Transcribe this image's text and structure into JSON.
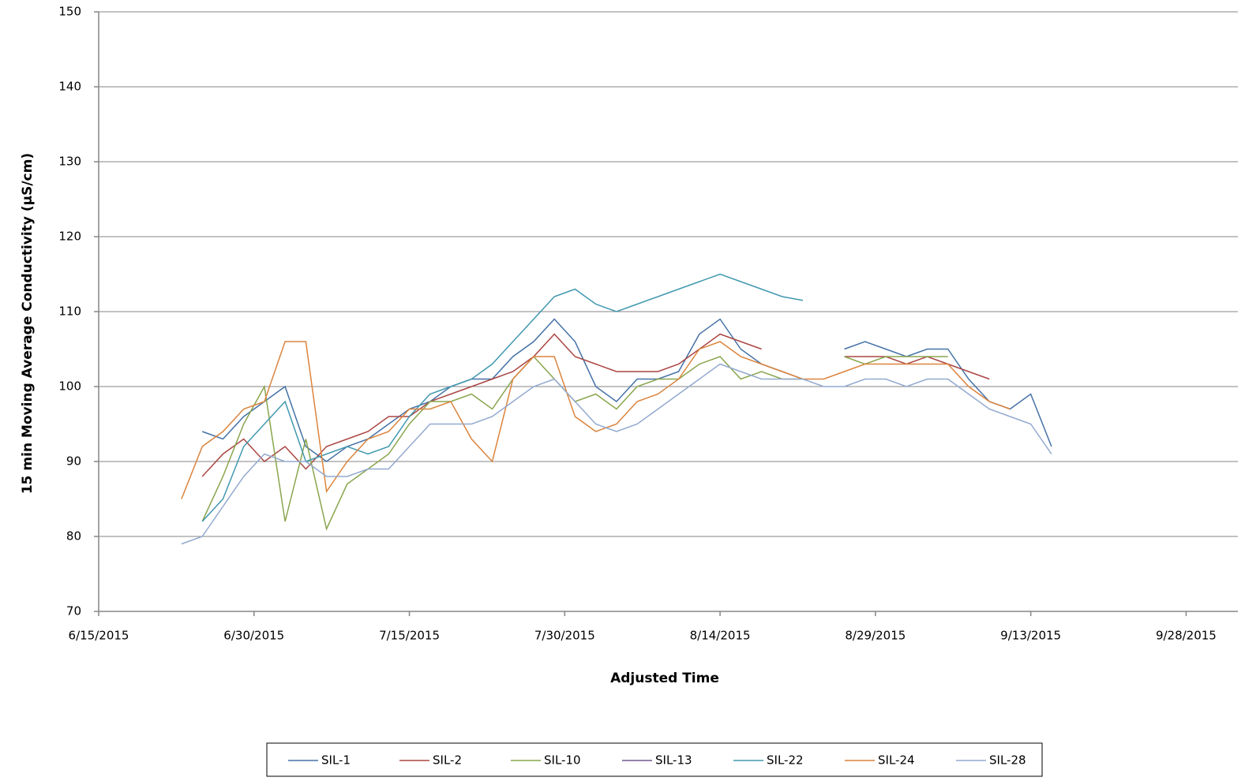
{
  "chart_data": {
    "type": "line",
    "y_label": "15 min  Moving  Average Conductivity (µS/cm)",
    "x_label": "Adjusted Time",
    "x": [
      "2015-06-23",
      "2015-06-25",
      "2015-06-27",
      "2015-06-29",
      "2015-07-01",
      "2015-07-03",
      "2015-07-05",
      "2015-07-07",
      "2015-07-09",
      "2015-07-11",
      "2015-07-13",
      "2015-07-15",
      "2015-07-17",
      "2015-07-19",
      "2015-07-21",
      "2015-07-23",
      "2015-07-25",
      "2015-07-27",
      "2015-07-29",
      "2015-07-31",
      "2015-08-02",
      "2015-08-04",
      "2015-08-06",
      "2015-08-08",
      "2015-08-10",
      "2015-08-12",
      "2015-08-14",
      "2015-08-16",
      "2015-08-18",
      "2015-08-20",
      "2015-08-22",
      "2015-08-24",
      "2015-08-26",
      "2015-08-28",
      "2015-08-30",
      "2015-09-01",
      "2015-09-03",
      "2015-09-05",
      "2015-09-07",
      "2015-09-09",
      "2015-09-11",
      "2015-09-13",
      "2015-09-15"
    ],
    "series": [
      {
        "name": "SIL-1",
        "color": "#4572a7",
        "values": [
          null,
          94,
          93,
          96,
          98,
          100,
          92,
          90,
          92,
          93,
          95,
          97,
          98,
          100,
          101,
          101,
          104,
          106,
          109,
          106,
          100,
          98,
          101,
          101,
          102,
          107,
          109,
          105,
          103,
          102,
          101,
          null,
          105,
          106,
          105,
          104,
          105,
          105,
          101,
          98,
          97,
          99,
          92
        ]
      },
      {
        "name": "SIL-2",
        "color": "#aa4643",
        "values": [
          null,
          88,
          91,
          93,
          90,
          92,
          89,
          92,
          93,
          94,
          96,
          96,
          98,
          99,
          100,
          101,
          102,
          104,
          107,
          104,
          103,
          102,
          102,
          102,
          103,
          105,
          107,
          106,
          105,
          null,
          null,
          null,
          104,
          104,
          104,
          103,
          104,
          103,
          102,
          101,
          null,
          null,
          null
        ]
      },
      {
        "name": "SIL-10",
        "color": "#89a54e",
        "values": [
          null,
          82,
          88,
          95,
          100,
          82,
          93,
          81,
          87,
          89,
          91,
          95,
          98,
          98,
          99,
          97,
          101,
          104,
          101,
          98,
          99,
          97,
          100,
          101,
          101,
          103,
          104,
          101,
          102,
          101,
          101,
          null,
          104,
          103,
          104,
          104,
          104,
          104,
          null,
          null,
          null,
          null,
          null
        ]
      },
      {
        "name": "SIL-13",
        "color": "#71588f",
        "values": [
          null,
          null,
          null,
          null,
          null,
          null,
          null,
          null,
          null,
          null,
          null,
          null,
          null,
          null,
          null,
          null,
          null,
          null,
          null,
          null,
          null,
          null,
          null,
          null,
          null,
          null,
          null,
          null,
          null,
          null,
          null,
          null,
          null,
          null,
          null,
          null,
          null,
          null,
          null,
          null,
          null,
          null,
          null
        ]
      },
      {
        "name": "SIL-22",
        "color": "#4198af",
        "values": [
          null,
          82,
          85,
          92,
          95,
          98,
          90,
          91,
          92,
          91,
          92,
          96,
          99,
          100,
          101,
          103,
          106,
          109,
          112,
          113,
          111,
          110,
          111,
          112,
          113,
          114,
          115,
          114,
          113,
          112,
          111.5,
          null,
          null,
          null,
          null,
          null,
          null,
          null,
          null,
          null,
          null,
          null,
          null
        ]
      },
      {
        "name": "SIL-24",
        "color": "#db843d",
        "values": [
          85,
          92,
          94,
          97,
          98,
          106,
          106,
          86,
          90,
          93,
          94,
          97,
          97,
          98,
          93,
          90,
          101,
          104,
          104,
          96,
          94,
          95,
          98,
          99,
          101,
          105,
          106,
          104,
          103,
          102,
          101,
          101,
          102,
          103,
          103,
          103,
          103,
          103,
          100,
          98,
          97,
          null,
          null
        ]
      },
      {
        "name": "SIL-28",
        "color": "#93a9cf",
        "values": [
          79,
          80,
          84,
          88,
          91,
          90,
          90,
          88,
          88,
          89,
          89,
          92,
          95,
          95,
          95,
          96,
          98,
          100,
          101,
          98,
          95,
          94,
          95,
          97,
          99,
          101,
          103,
          102,
          101,
          101,
          101,
          100,
          100,
          101,
          101,
          100,
          101,
          101,
          99,
          97,
          96,
          95,
          91
        ]
      }
    ],
    "xlim": [
      "2015-06-15",
      "2015-10-03"
    ],
    "xticks": [
      {
        "value": "2015-06-15",
        "label": "6/15/2015"
      },
      {
        "value": "2015-06-30",
        "label": "6/30/2015"
      },
      {
        "value": "2015-07-15",
        "label": "7/15/2015"
      },
      {
        "value": "2015-07-30",
        "label": "7/30/2015"
      },
      {
        "value": "2015-08-14",
        "label": "8/14/2015"
      },
      {
        "value": "2015-08-29",
        "label": "8/29/2015"
      },
      {
        "value": "2015-09-13",
        "label": "9/13/2015"
      },
      {
        "value": "2015-09-28",
        "label": "9/28/2015"
      }
    ],
    "ylim": [
      70,
      150
    ],
    "yticks": [
      70,
      80,
      90,
      100,
      110,
      120,
      130,
      140,
      150
    ],
    "grid": true,
    "legend": "bottom"
  }
}
